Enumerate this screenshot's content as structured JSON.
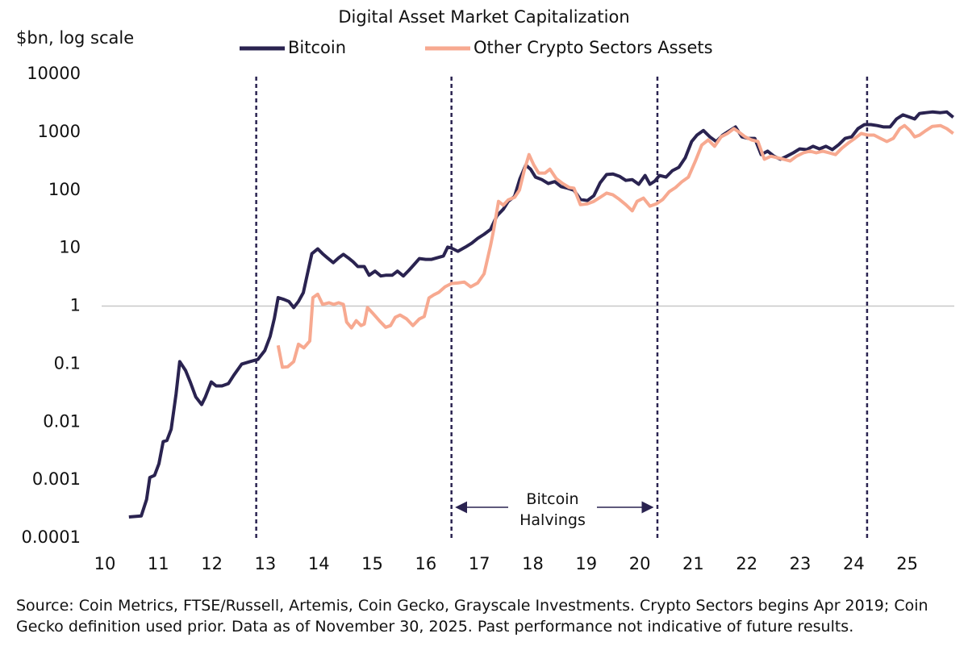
{
  "chart_data": {
    "type": "line",
    "title": "Digital Asset Market Capitalization",
    "y_label": "$bn, log scale",
    "log_scale": true,
    "xlim": [
      9.94,
      25.88
    ],
    "ylim": [
      0.0001,
      10000
    ],
    "xticks": [
      10,
      11,
      12,
      13,
      14,
      15,
      16,
      17,
      18,
      19,
      20,
      21,
      22,
      23,
      24,
      25
    ],
    "yticks": [
      10000,
      1000,
      100,
      10,
      1,
      0.1,
      0.01,
      0.001,
      0.0001
    ],
    "hlines": [
      1
    ],
    "vlines": [
      12.83,
      16.48,
      20.33,
      24.25
    ],
    "vline_color": "#2a2350",
    "annotation": "Bitcoin Halvings",
    "source": "Source: Coin Metrics, FTSE/Russell, Artemis, Coin Gecko, Grayscale Investments. Crypto Sectors begins Apr 2019; Coin Gecko definition used prior. Data as of November 30, 2025. Past performance not indicative of future results.",
    "series": [
      {
        "name": "Bitcoin",
        "color": "#2a2350",
        "x": [
          10.45,
          10.68,
          10.78,
          10.84,
          10.93,
          11.01,
          11.09,
          11.16,
          11.24,
          11.33,
          11.4,
          11.51,
          11.6,
          11.7,
          11.81,
          11.88,
          11.99,
          12.08,
          12.19,
          12.31,
          12.41,
          12.56,
          12.71,
          12.86,
          12.99,
          13.09,
          13.17,
          13.24,
          13.35,
          13.44,
          13.53,
          13.62,
          13.71,
          13.8,
          13.87,
          13.98,
          14.07,
          14.16,
          14.27,
          14.37,
          14.46,
          14.55,
          14.64,
          14.73,
          14.85,
          14.94,
          15.05,
          15.16,
          15.25,
          15.37,
          15.47,
          15.58,
          15.68,
          15.79,
          15.88,
          16.0,
          16.11,
          16.21,
          16.33,
          16.41,
          16.48,
          16.6,
          16.74,
          16.86,
          16.97,
          17.09,
          17.21,
          17.33,
          17.45,
          17.54,
          17.66,
          17.76,
          17.87,
          17.96,
          18.05,
          18.17,
          18.29,
          18.41,
          18.53,
          18.65,
          18.77,
          18.89,
          19.02,
          19.14,
          19.26,
          19.38,
          19.5,
          19.62,
          19.74,
          19.86,
          19.98,
          20.1,
          20.19,
          20.28,
          20.37,
          20.49,
          20.61,
          20.73,
          20.85,
          20.97,
          21.07,
          21.19,
          21.31,
          21.43,
          21.55,
          21.67,
          21.79,
          21.91,
          22.03,
          22.15,
          22.27,
          22.39,
          22.51,
          22.63,
          22.75,
          22.87,
          22.99,
          23.12,
          23.24,
          23.36,
          23.48,
          23.6,
          23.72,
          23.84,
          23.96,
          24.08,
          24.2,
          24.32,
          24.44,
          24.56,
          24.68,
          24.8,
          24.92,
          25.05,
          25.14,
          25.23,
          25.35,
          25.47,
          25.62,
          25.74,
          25.86
        ],
        "values": [
          0.00023,
          0.00024,
          0.00046,
          0.0011,
          0.0012,
          0.0019,
          0.0046,
          0.0048,
          0.0075,
          0.03,
          0.11,
          0.077,
          0.048,
          0.027,
          0.02,
          0.027,
          0.049,
          0.042,
          0.042,
          0.046,
          0.064,
          0.1,
          0.11,
          0.12,
          0.17,
          0.3,
          0.62,
          1.4,
          1.3,
          1.2,
          0.94,
          1.2,
          1.7,
          4.1,
          8,
          9.7,
          8,
          6.8,
          5.6,
          6.8,
          7.8,
          6.8,
          5.8,
          4.8,
          4.8,
          3.4,
          4,
          3.3,
          3.4,
          3.4,
          4,
          3.3,
          4.1,
          5.3,
          6.6,
          6.4,
          6.4,
          6.8,
          7.3,
          10.4,
          10,
          8.8,
          10.4,
          12.2,
          14.7,
          17.3,
          21,
          36,
          47,
          64,
          78,
          158,
          270,
          230,
          168,
          152,
          130,
          140,
          115,
          108,
          100,
          69,
          66,
          80,
          134,
          186,
          190,
          173,
          147,
          152,
          126,
          179,
          126,
          143,
          179,
          168,
          217,
          247,
          362,
          690,
          890,
          1070,
          830,
          690,
          890,
          1050,
          1230,
          830,
          780,
          780,
          410,
          470,
          385,
          340,
          385,
          440,
          515,
          500,
          570,
          515,
          570,
          500,
          610,
          780,
          830,
          1150,
          1350,
          1350,
          1300,
          1230,
          1230,
          1690,
          1990,
          1810,
          1690,
          2100,
          2170,
          2230,
          2170,
          2230,
          1810
        ]
      },
      {
        "name": "Other Crypto Sectors Assets",
        "color": "#f7a990",
        "x": [
          13.24,
          13.32,
          13.42,
          13.53,
          13.62,
          13.72,
          13.83,
          13.89,
          13.98,
          14.07,
          14.19,
          14.28,
          14.37,
          14.46,
          14.52,
          14.61,
          14.7,
          14.79,
          14.85,
          14.91,
          15.0,
          15.13,
          15.25,
          15.34,
          15.43,
          15.52,
          15.64,
          15.76,
          15.88,
          15.97,
          16.06,
          16.15,
          16.24,
          16.36,
          16.48,
          16.6,
          16.72,
          16.84,
          16.97,
          17.09,
          17.21,
          17.27,
          17.36,
          17.45,
          17.54,
          17.66,
          17.75,
          17.84,
          17.93,
          18.02,
          18.11,
          18.23,
          18.32,
          18.44,
          18.56,
          18.68,
          18.77,
          18.89,
          19.02,
          19.14,
          19.26,
          19.38,
          19.5,
          19.62,
          19.74,
          19.86,
          19.95,
          20.07,
          20.19,
          20.31,
          20.43,
          20.55,
          20.67,
          20.79,
          20.91,
          21.04,
          21.16,
          21.28,
          21.4,
          21.52,
          21.64,
          21.76,
          21.85,
          21.97,
          22.09,
          22.21,
          22.33,
          22.45,
          22.57,
          22.69,
          22.81,
          22.93,
          23.06,
          23.18,
          23.3,
          23.42,
          23.54,
          23.66,
          23.78,
          23.9,
          24.02,
          24.14,
          24.26,
          24.38,
          24.5,
          24.62,
          24.74,
          24.86,
          24.95,
          25.05,
          25.14,
          25.23,
          25.35,
          25.47,
          25.62,
          25.74,
          25.86
        ],
        "values": [
          0.21,
          0.088,
          0.09,
          0.11,
          0.22,
          0.19,
          0.25,
          1.4,
          1.6,
          1.07,
          1.14,
          1.07,
          1.14,
          1.07,
          0.53,
          0.42,
          0.56,
          0.46,
          0.49,
          0.94,
          0.77,
          0.56,
          0.43,
          0.46,
          0.64,
          0.7,
          0.6,
          0.46,
          0.6,
          0.66,
          1.38,
          1.56,
          1.72,
          2.15,
          2.45,
          2.5,
          2.6,
          2.15,
          2.5,
          3.6,
          11,
          21,
          64,
          55,
          68,
          75,
          100,
          218,
          410,
          270,
          197,
          197,
          230,
          158,
          130,
          111,
          108,
          56,
          58,
          64,
          75,
          89,
          83,
          69,
          56,
          44,
          64,
          73,
          53,
          58,
          69,
          94,
          111,
          140,
          168,
          318,
          600,
          735,
          570,
          830,
          950,
          1150,
          1010,
          830,
          735,
          690,
          340,
          385,
          362,
          340,
          318,
          385,
          440,
          470,
          440,
          470,
          440,
          410,
          530,
          650,
          780,
          950,
          890,
          890,
          780,
          690,
          780,
          1150,
          1300,
          1070,
          830,
          890,
          1070,
          1260,
          1300,
          1150,
          950
        ]
      }
    ]
  }
}
